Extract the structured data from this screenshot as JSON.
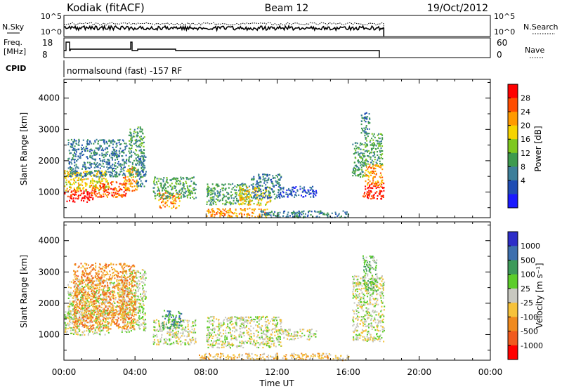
{
  "header": {
    "station": "Kodiak (fitACF)",
    "beam": "Beam 12",
    "date": "19/Oct/2012"
  },
  "status_panels": {
    "nsky_label": "N.Sky",
    "nsearch_label": "N.Search",
    "freq_label_line1": "Freq.",
    "freq_label_line2": "[MHz]",
    "nave_label": "Nave",
    "cpid_label": "CPID",
    "cpid_value": "normalsound (fast) -157 RF",
    "nsky_ticks": [
      "10^5",
      "10^0"
    ],
    "nsearch_ticks": [
      "10^5",
      "10^0"
    ],
    "freq_ticks": [
      "18",
      "8"
    ],
    "nave_ticks": [
      "60",
      "0"
    ]
  },
  "power_colorbar": {
    "label": "Power [dB]",
    "ticks": [
      "28",
      "24",
      "20",
      "16",
      "12",
      "8",
      "4"
    ],
    "colors": [
      "#ff0000",
      "#ff4d00",
      "#ff9a00",
      "#f6d400",
      "#7ec81f",
      "#3d9a4e",
      "#3d7f9a",
      "#1f4db4",
      "#1a1aff"
    ]
  },
  "velocity_colorbar": {
    "label": "Velocity [m s⁻¹]",
    "ticks": [
      "1000",
      "500",
      "100",
      "25",
      "-25",
      "-100",
      "-500",
      "-1000"
    ],
    "colors": [
      "#2d2dc8",
      "#3d6fae",
      "#3d9a5a",
      "#5ccd2a",
      "#c8c8c0",
      "#f6c23a",
      "#f08a1e",
      "#f05a1e",
      "#ff0000"
    ]
  },
  "chart_data": [
    {
      "type": "heatmap",
      "title": "",
      "xlabel": "",
      "ylabel": "Slant Range [km]",
      "x_ticks": [
        "00:00",
        "04:00",
        "08:00",
        "12:00",
        "16:00",
        "20:00",
        "00:00"
      ],
      "y_ticks": [
        "1000",
        "2000",
        "3000",
        "4000"
      ],
      "xlim": [
        0,
        24
      ],
      "ylim": [
        180,
        4600
      ],
      "colorbar": "power_colorbar",
      "regions": [
        {
          "t": [
            0.0,
            1.6
          ],
          "r": [
            700,
            1100
          ],
          "level": 0
        },
        {
          "t": [
            0.0,
            2.5
          ],
          "r": [
            1050,
            1700
          ],
          "level": 3
        },
        {
          "t": [
            0.2,
            3.5
          ],
          "r": [
            1500,
            2700
          ],
          "level": 6
        },
        {
          "t": [
            1.5,
            3.5
          ],
          "r": [
            850,
            1350
          ],
          "level": 1
        },
        {
          "t": [
            3.3,
            4.1
          ],
          "r": [
            1050,
            1800
          ],
          "level": 2
        },
        {
          "t": [
            3.6,
            4.5
          ],
          "r": [
            1500,
            3100
          ],
          "level": 5
        },
        {
          "t": [
            4.0,
            4.6
          ],
          "r": [
            1200,
            2200
          ],
          "level": 6
        },
        {
          "t": [
            5.3,
            6.5
          ],
          "r": [
            500,
            1000
          ],
          "level": 2
        },
        {
          "t": [
            5.0,
            7.4
          ],
          "r": [
            800,
            1500
          ],
          "level": 5
        },
        {
          "t": [
            8.0,
            10.4
          ],
          "r": [
            600,
            1300
          ],
          "level": 5
        },
        {
          "t": [
            9.8,
            11.6
          ],
          "r": [
            600,
            1200
          ],
          "level": 3
        },
        {
          "t": [
            10.5,
            12.2
          ],
          "r": [
            800,
            1600
          ],
          "level": 6
        },
        {
          "t": [
            12.0,
            14.2
          ],
          "r": [
            850,
            1200
          ],
          "level": 7
        },
        {
          "t": [
            8.0,
            11.5
          ],
          "r": [
            200,
            500
          ],
          "level": 2
        },
        {
          "t": [
            11.0,
            16.0
          ],
          "r": [
            200,
            420
          ],
          "level": 6
        },
        {
          "t": [
            16.2,
            17.0
          ],
          "r": [
            1500,
            2600
          ],
          "level": 5
        },
        {
          "t": [
            16.8,
            18.0
          ],
          "r": [
            800,
            1300
          ],
          "level": 0
        },
        {
          "t": [
            16.9,
            17.9
          ],
          "r": [
            1200,
            1900
          ],
          "level": 2
        },
        {
          "t": [
            16.9,
            17.9
          ],
          "r": [
            1900,
            2900
          ],
          "level": 5
        },
        {
          "t": [
            16.7,
            17.2
          ],
          "r": [
            2900,
            3550
          ],
          "level": 6
        }
      ]
    },
    {
      "type": "heatmap",
      "title": "",
      "xlabel": "Time UT",
      "ylabel": "Slant Range [km]",
      "x_ticks": [
        "00:00",
        "04:00",
        "08:00",
        "12:00",
        "16:00",
        "20:00",
        "00:00"
      ],
      "y_ticks": [
        "1000",
        "2000",
        "3000",
        "4000"
      ],
      "xlim": [
        0,
        24
      ],
      "ylim": [
        180,
        4600
      ],
      "colorbar": "velocity_colorbar",
      "regions": [
        {
          "t": [
            0.0,
            2.5
          ],
          "r": [
            1000,
            1800
          ],
          "level": 4
        },
        {
          "t": [
            0.2,
            3.6
          ],
          "r": [
            1500,
            2800
          ],
          "level": 4
        },
        {
          "t": [
            3.2,
            4.6
          ],
          "r": [
            1100,
            3100
          ],
          "level": 4
        },
        {
          "t": [
            5.0,
            7.4
          ],
          "r": [
            700,
            1500
          ],
          "level": 4
        },
        {
          "t": [
            8.0,
            12.2
          ],
          "r": [
            600,
            1600
          ],
          "level": 4
        },
        {
          "t": [
            12.0,
            14.2
          ],
          "r": [
            850,
            1200
          ],
          "level": 4
        },
        {
          "t": [
            7.5,
            16.0
          ],
          "r": [
            200,
            420
          ],
          "level": 5
        },
        {
          "t": [
            16.2,
            18.0
          ],
          "r": [
            800,
            2900
          ],
          "level": 4
        },
        {
          "t": [
            16.8,
            17.6
          ],
          "r": [
            2400,
            3550
          ],
          "level": 3
        },
        {
          "t": [
            0.5,
            4.0
          ],
          "r": [
            1200,
            3300
          ],
          "level": 6
        },
        {
          "t": [
            5.5,
            6.6
          ],
          "r": [
            1200,
            1800
          ],
          "level": 2
        }
      ]
    }
  ]
}
